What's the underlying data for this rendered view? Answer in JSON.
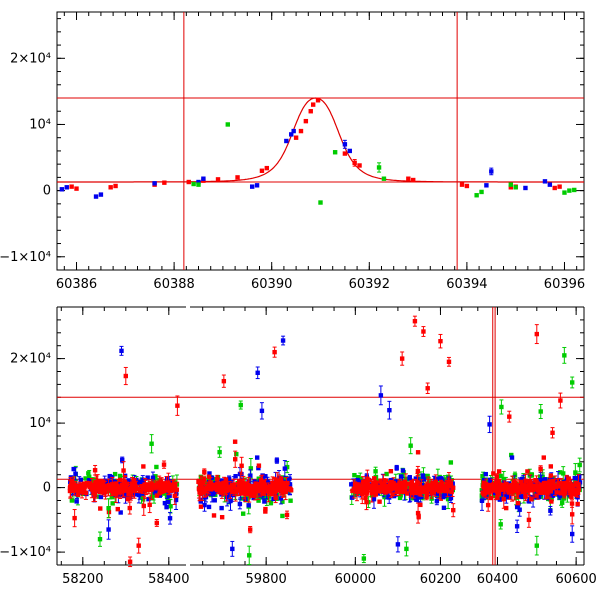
{
  "chart_data": [
    {
      "type": "scatter",
      "panel": "top",
      "xlim": [
        60385.6,
        60396.4
      ],
      "ylim": [
        -12000,
        27000
      ],
      "xticks": [
        60386,
        60388,
        60390,
        60392,
        60394,
        60396
      ],
      "yticks": [
        -10000,
        0,
        10000,
        20000
      ],
      "xtick_labels": [
        "60386",
        "60388",
        "60390",
        "60392",
        "60394",
        "60396"
      ],
      "ytick_labels": [
        "−1×10⁴",
        "0",
        "10⁴",
        "2×10⁴"
      ],
      "grid": false,
      "hlines": [
        14000,
        1300
      ],
      "vlines": [
        60388.2,
        60393.8
      ],
      "model_curve": {
        "baseline": 1300,
        "peak": 14000,
        "t0": 60390.9,
        "width": 0.55
      },
      "series": [
        {
          "color": "#ff0000",
          "points": [
            [
              60385.9,
              600
            ],
            [
              60386.0,
              300
            ],
            [
              60386.7,
              500
            ],
            [
              60386.8,
              700
            ],
            [
              60387.6,
              900
            ],
            [
              60387.8,
              1200
            ],
            [
              60388.3,
              1300
            ],
            [
              60388.6,
              1500
            ],
            [
              60388.9,
              1700
            ],
            [
              60389.3,
              2000
            ],
            [
              60389.8,
              3000
            ],
            [
              60389.9,
              3400
            ],
            [
              60390.5,
              8000
            ],
            [
              60390.6,
              9000
            ],
            [
              60390.7,
              10500
            ],
            [
              60390.8,
              12000
            ],
            [
              60390.85,
              13000
            ],
            [
              60390.95,
              13700
            ],
            [
              60391.5,
              5600
            ],
            [
              60391.7,
              4200
            ],
            [
              60391.8,
              3800
            ],
            [
              60392.8,
              1800
            ],
            [
              60392.9,
              1600
            ],
            [
              60393.9,
              900
            ],
            [
              60394.0,
              700
            ],
            [
              60394.9,
              500
            ],
            [
              60395.0,
              600
            ],
            [
              60395.8,
              400
            ],
            [
              60395.9,
              600
            ]
          ],
          "err": [
            [
              60391.7,
              500
            ],
            [
              60390.95,
              300
            ]
          ]
        },
        {
          "color": "#0000ee",
          "points": [
            [
              60385.7,
              200
            ],
            [
              60385.8,
              500
            ],
            [
              60386.4,
              -900
            ],
            [
              60386.5,
              -600
            ],
            [
              60387.6,
              1100
            ],
            [
              60388.5,
              1300
            ],
            [
              60388.6,
              1800
            ],
            [
              60389.6,
              600
            ],
            [
              60389.7,
              800
            ],
            [
              60390.3,
              7500
            ],
            [
              60390.4,
              8500
            ],
            [
              60390.45,
              9000
            ],
            [
              60391.5,
              7000
            ],
            [
              60391.6,
              6000
            ],
            [
              60394.4,
              800
            ],
            [
              60394.5,
              2900
            ],
            [
              60395.2,
              400
            ],
            [
              60395.6,
              1400
            ],
            [
              60395.7,
              900
            ]
          ],
          "err": [
            [
              60391.5,
              600
            ],
            [
              60394.5,
              500
            ]
          ]
        },
        {
          "color": "#00cc00",
          "points": [
            [
              60388.4,
              1000
            ],
            [
              60388.5,
              900
            ],
            [
              60389.1,
              10000
            ],
            [
              60391.0,
              -1800
            ],
            [
              60391.3,
              5800
            ],
            [
              60392.2,
              3500
            ],
            [
              60392.3,
              1800
            ],
            [
              60394.2,
              -700
            ],
            [
              60394.3,
              -200
            ],
            [
              60394.9,
              900
            ],
            [
              60395.0,
              500
            ],
            [
              60396.0,
              -300
            ],
            [
              60396.1,
              0
            ],
            [
              60396.2,
              100
            ]
          ],
          "err": [
            [
              60392.2,
              700
            ]
          ]
        }
      ]
    },
    {
      "type": "scatter",
      "panel": "bottom",
      "x_segments": [
        {
          "range": [
            58140,
            58440
          ],
          "xticks": [
            58200,
            58400
          ],
          "xtick_labels": [
            "58200",
            "58400"
          ]
        },
        {
          "range": [
            59620,
            59880
          ],
          "xticks": [
            59800
          ],
          "xtick_labels": [
            "59800"
          ]
        },
        {
          "range": [
            59870,
            60260
          ],
          "xticks": [
            60000,
            60200
          ],
          "xtick_labels": [
            "60000",
            "60200"
          ]
        },
        {
          "range": [
            60320,
            60620
          ],
          "xticks": [
            60400,
            60600
          ],
          "xtick_labels": [
            "60400",
            "60600"
          ]
        }
      ],
      "ylim": [
        -12000,
        28000
      ],
      "yticks": [
        -10000,
        0,
        10000,
        20000
      ],
      "ytick_labels": [
        "−1×10⁴",
        "0",
        "10⁴",
        "2×10⁴"
      ],
      "grid": false,
      "hlines": [
        14000,
        1300
      ],
      "vlines": [
        60388,
        60394
      ],
      "noise_band": {
        "center": 0,
        "spread": 1800
      },
      "outliers": [
        {
          "color": "#ff0000",
          "points": [
            [
              58300,
              17300
            ],
            [
              58420,
              12700
            ],
            [
              58330,
              -9000
            ],
            [
              59820,
              21000
            ],
            [
              59760,
              -1000
            ],
            [
              60140,
              25800
            ],
            [
              60160,
              24200
            ],
            [
              60200,
              22700
            ],
            [
              60170,
              15400
            ],
            [
              60230,
              -3500
            ],
            [
              60500,
              23800
            ],
            [
              60540,
              8500
            ],
            [
              60560,
              13500
            ],
            [
              60480,
              -5000
            ],
            [
              60430,
              11000
            ],
            [
              60110,
              20000
            ],
            [
              59700,
              16500
            ],
            [
              60220,
              19500
            ],
            [
              58310,
              -11500
            ]
          ]
        },
        {
          "color": "#0000ee",
          "points": [
            [
              58290,
              21200
            ],
            [
              59840,
              22800
            ],
            [
              59780,
              17800
            ],
            [
              59790,
              11900
            ],
            [
              60060,
              14300
            ],
            [
              60080,
              12000
            ],
            [
              59720,
              -9500
            ],
            [
              60100,
              -8800
            ],
            [
              60450,
              -6000
            ],
            [
              60380,
              9800
            ],
            [
              58260,
              -6500
            ],
            [
              60590,
              -7200
            ]
          ]
        },
        {
          "color": "#00cc00",
          "points": [
            [
              58360,
              6800
            ],
            [
              60570,
              20500
            ],
            [
              60590,
              16300
            ],
            [
              59740,
              12800
            ],
            [
              60510,
              11800
            ],
            [
              60020,
              -11000
            ],
            [
              59760,
              -10500
            ],
            [
              60120,
              -9500
            ],
            [
              60500,
              -9000
            ],
            [
              58240,
              -8000
            ],
            [
              60410,
              12500
            ],
            [
              59690,
              5500
            ],
            [
              60130,
              6500
            ],
            [
              58260,
              -3200
            ]
          ]
        }
      ]
    }
  ]
}
